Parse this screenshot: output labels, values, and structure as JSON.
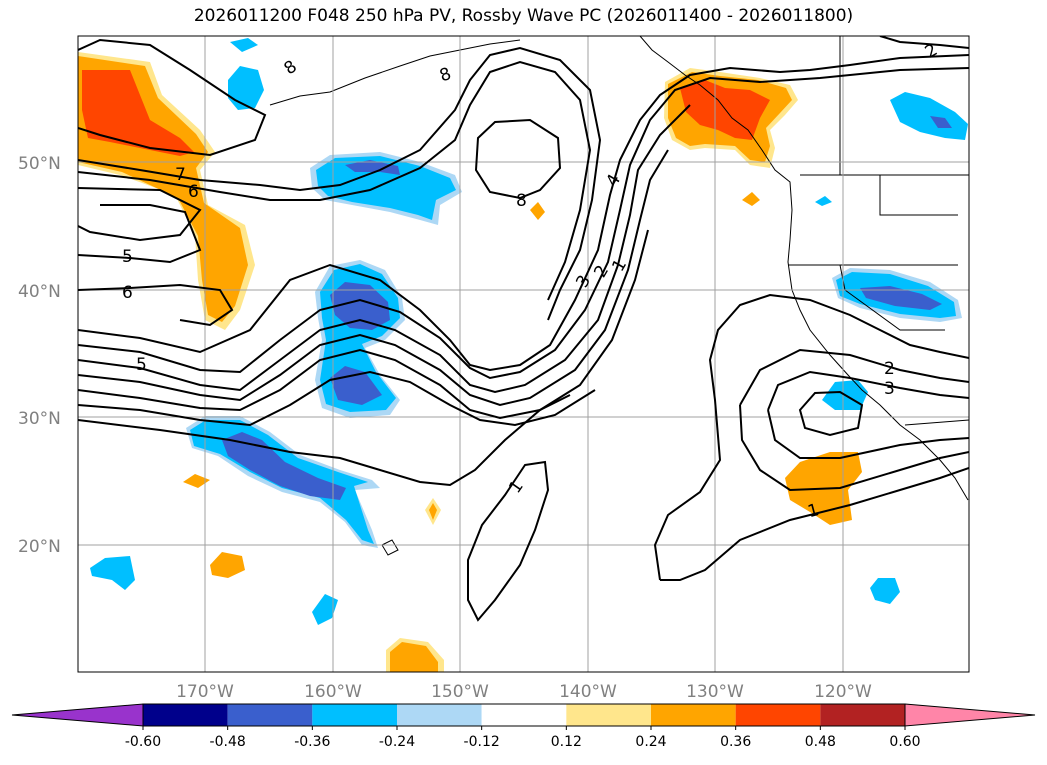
{
  "title": "2026011200 F048 250 hPa PV, Rossby Wave PC (2026011400 - 2026011800)",
  "lat_labels": [
    "50°N",
    "40°N",
    "30°N",
    "20°N"
  ],
  "lon_labels": [
    "170°W",
    "160°W",
    "150°W",
    "140°W",
    "130°W",
    "120°W"
  ],
  "contour_labels": {
    "c8a": "8",
    "c8b": "8",
    "c8c": "8",
    "c7": "7",
    "c6a": "6",
    "c6b": "6",
    "c5a": "5",
    "c5b": "5",
    "c4": "4",
    "c3a": "3",
    "c3b": "3",
    "c2a": "2",
    "c2b": "2",
    "c2c": "2",
    "c1a": "1",
    "c1b": "1",
    "c1c": "1"
  },
  "colorbar": {
    "ticks": [
      "-0.60",
      "-0.48",
      "-0.36",
      "-0.24",
      "-0.12",
      "0.12",
      "0.24",
      "0.36",
      "0.48",
      "0.60"
    ],
    "colors": [
      "#9933cc",
      "#00008b",
      "#3a5fcd",
      "#00bfff",
      "#add8f5",
      "#ffffff",
      "#ffe68c",
      "#ffa500",
      "#ff4500",
      "#b22222",
      "#ff85a8"
    ]
  },
  "colors": {
    "neg_light": "#00bfff",
    "neg_mid": "#3a5fcd",
    "pos_light": "#ffe68c",
    "pos_mid": "#ffa500",
    "pos_strong": "#ff4500"
  }
}
